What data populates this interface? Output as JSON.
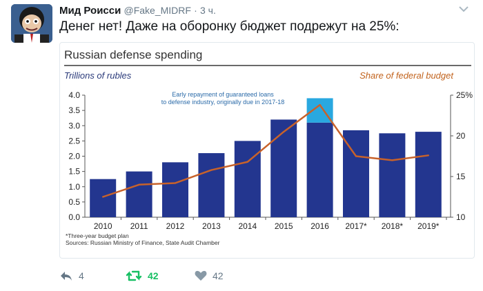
{
  "tweet": {
    "author_name": "Мид Роисси",
    "handle": "@Fake_MIDRF",
    "dot": "·",
    "time": "3 ч.",
    "text": "Денег нет! Даже на оборонку бюджет подрежут на 25%:"
  },
  "card": {
    "title": "Russian defense spending",
    "left_label": "Trillions of rubles",
    "right_label": "Share of federal budget",
    "annotation_line1": "Early repayment of guaranteed loans",
    "annotation_line2": "to defense industry, originally due in 2017-18",
    "footnote_line1": "*Three-year budget plan",
    "footnote_line2": "Sources: Russian Ministry of Finance, State Audit Chamber"
  },
  "chart_data": {
    "type": "bar",
    "title": "Russian defense spending",
    "categories": [
      "2010",
      "2011",
      "2012",
      "2013",
      "2014",
      "2015",
      "2016",
      "2017*",
      "2018*",
      "2019*"
    ],
    "series": [
      {
        "name": "Trillions of rubles",
        "values": [
          1.25,
          1.5,
          1.8,
          2.1,
          2.5,
          3.2,
          3.1,
          2.85,
          2.75,
          2.8
        ],
        "color": "#23368f"
      },
      {
        "name": "Early repayment of guaranteed loans",
        "values": [
          0,
          0,
          0,
          0,
          0,
          0,
          0.8,
          0,
          0,
          0
        ],
        "color": "#29a8e0"
      },
      {
        "name": "Share of federal budget",
        "values": [
          12.5,
          14.0,
          14.2,
          15.8,
          16.8,
          20.5,
          23.8,
          17.5,
          17.0,
          17.6
        ],
        "color": "#c8622a",
        "axis": "right"
      }
    ],
    "y_left": {
      "label": "Trillions of rubles",
      "ylim": [
        0,
        4.0
      ],
      "ticks": [
        "0.0",
        "0.5",
        "1.0",
        "1.5",
        "2.0",
        "2.5",
        "3.0",
        "3.5",
        "4.0"
      ]
    },
    "y_right": {
      "label": "Share of federal budget",
      "ylim": [
        10,
        25
      ],
      "ticks": [
        "10",
        "15",
        "20",
        "25%"
      ]
    },
    "grid": false,
    "legend": "none"
  },
  "actions": {
    "reply_count": "4",
    "retweet_count": "42",
    "like_count": "42"
  },
  "colors": {
    "bar": "#23368f",
    "bar_extra": "#29a8e0",
    "line": "#c8622a",
    "retweet_green": "#17bf63",
    "muted": "#657786"
  },
  "icons": {
    "avatar": "cartoon-avatar",
    "chevron": "chevron-down-icon",
    "reply": "reply-icon",
    "retweet": "retweet-icon",
    "like": "heart-icon"
  }
}
